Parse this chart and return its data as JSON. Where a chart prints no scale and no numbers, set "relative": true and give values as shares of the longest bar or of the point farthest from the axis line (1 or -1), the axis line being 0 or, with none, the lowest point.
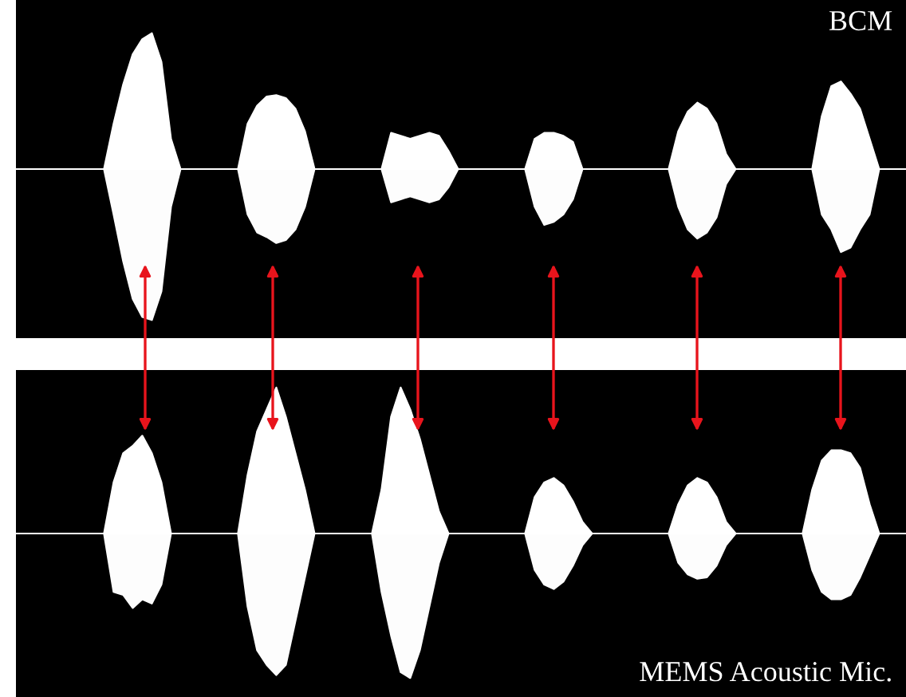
{
  "chart_data": [
    {
      "type": "area",
      "relative": true,
      "annotations": [
        "BCM"
      ],
      "categories": [
        null,
        null,
        null,
        null,
        null,
        null,
        null,
        null,
        null,
        null,
        null,
        null,
        null,
        null,
        null,
        null,
        null,
        null,
        null,
        null,
        null,
        null,
        null,
        null,
        null,
        null,
        null,
        null,
        null,
        null,
        null,
        null,
        null,
        null,
        null,
        null,
        null,
        null,
        null,
        null,
        null,
        null,
        null,
        null,
        null,
        null,
        null,
        null,
        null,
        null,
        null,
        null,
        null,
        null,
        null,
        null,
        null,
        null,
        null,
        null,
        null,
        null,
        null,
        null,
        null,
        null,
        null,
        null,
        null,
        null,
        null,
        null,
        null,
        null,
        null,
        null,
        null,
        null,
        null,
        null,
        null,
        null,
        null,
        null,
        null,
        null,
        null,
        null,
        null,
        null,
        null,
        null,
        null
      ],
      "series": [
        {
          "color": "#ffffff",
          "values": [
            0,
            0,
            0,
            0,
            0,
            0,
            0,
            0,
            0,
            0,
            0.3,
            0.56,
            0.76,
            0.86,
            0.9,
            0.71,
            0.2,
            0,
            0,
            0,
            0,
            0,
            0,
            0,
            0.3,
            0.42,
            0.48,
            0.49,
            0.47,
            0.4,
            0.25,
            0,
            0,
            0,
            0,
            0,
            0,
            0,
            0,
            0.24,
            0.22,
            0.2,
            0.22,
            0.24,
            0.22,
            0.12,
            0,
            0,
            0,
            0,
            0,
            0,
            0,
            0,
            0.2,
            0.24,
            0.24,
            0.22,
            0.18,
            0,
            0,
            0,
            0,
            0,
            0,
            0,
            0,
            0,
            0,
            0.25,
            0.38,
            0.44,
            0.4,
            0.3,
            0.1,
            0,
            0,
            0,
            0,
            0,
            0,
            0,
            0,
            0,
            0.35,
            0.55,
            0.58,
            0.5,
            0.4,
            0.2,
            0,
            0,
            0
          ]
        },
        {
          "color": "#fdfdfd",
          "values": [
            0,
            0,
            0,
            0,
            0,
            0,
            0,
            0,
            0,
            0,
            -0.3,
            -0.61,
            -0.86,
            -0.98,
            -1,
            -0.81,
            -0.25,
            0,
            0,
            0,
            0,
            0,
            0,
            0,
            -0.3,
            -0.42,
            -0.45,
            -0.49,
            -0.47,
            -0.4,
            -0.25,
            0,
            0,
            0,
            0,
            0,
            0,
            0,
            0,
            -0.22,
            -0.2,
            -0.18,
            -0.2,
            -0.22,
            -0.2,
            -0.12,
            0,
            0,
            0,
            0,
            0,
            0,
            0,
            0,
            -0.25,
            -0.37,
            -0.35,
            -0.3,
            -0.2,
            0,
            0,
            0,
            0,
            0,
            0,
            0,
            0,
            0,
            0,
            -0.25,
            -0.4,
            -0.46,
            -0.42,
            -0.32,
            -0.1,
            0,
            0,
            0,
            0,
            0,
            0,
            0,
            0,
            0,
            -0.3,
            -0.4,
            -0.55,
            -0.52,
            -0.4,
            -0.3,
            0,
            0,
            0
          ]
        }
      ]
    },
    {
      "type": "area",
      "relative": true,
      "annotations": [
        "MEMS Acoustic Mic."
      ],
      "categories": [
        null,
        null,
        null,
        null,
        null,
        null,
        null,
        null,
        null,
        null,
        null,
        null,
        null,
        null,
        null,
        null,
        null,
        null,
        null,
        null,
        null,
        null,
        null,
        null,
        null,
        null,
        null,
        null,
        null,
        null,
        null,
        null,
        null,
        null,
        null,
        null,
        null,
        null,
        null,
        null,
        null,
        null,
        null,
        null,
        null,
        null,
        null,
        null,
        null,
        null,
        null,
        null,
        null,
        null,
        null,
        null,
        null,
        null,
        null,
        null,
        null,
        null,
        null,
        null,
        null,
        null,
        null,
        null,
        null,
        null,
        null,
        null,
        null,
        null,
        null,
        null,
        null,
        null,
        null,
        null,
        null,
        null,
        null,
        null,
        null,
        null,
        null,
        null,
        null,
        null,
        null,
        null,
        null
      ],
      "series": [
        {
          "color": "#ffffff",
          "values": [
            0,
            0,
            0,
            0,
            0,
            0,
            0,
            0,
            0,
            0,
            0.35,
            0.55,
            0.6,
            0.67,
            0.55,
            0.35,
            0,
            0,
            0,
            0,
            0,
            0,
            0,
            0,
            0.4,
            0.7,
            0.85,
            1,
            0.8,
            0.55,
            0.3,
            0,
            0,
            0,
            0,
            0,
            0,
            0,
            0.3,
            0.8,
            1,
            0.85,
            0.65,
            0.4,
            0.15,
            0,
            0,
            0,
            0,
            0,
            0,
            0,
            0,
            0,
            0.25,
            0.35,
            0.38,
            0.33,
            0.22,
            0.08,
            0,
            0,
            0,
            0,
            0,
            0,
            0,
            0,
            0,
            0.2,
            0.33,
            0.38,
            0.35,
            0.25,
            0.08,
            0,
            0,
            0,
            0,
            0,
            0,
            0,
            0,
            0.3,
            0.5,
            0.57,
            0.57,
            0.55,
            0.45,
            0.2,
            0,
            0,
            0
          ]
        },
        {
          "color": "#fdfdfd",
          "values": [
            0,
            0,
            0,
            0,
            0,
            0,
            0,
            0,
            0,
            0,
            -0.4,
            -0.42,
            -0.51,
            -0.45,
            -0.48,
            -0.35,
            0,
            0,
            0,
            0,
            0,
            0,
            0,
            0,
            -0.5,
            -0.8,
            -0.9,
            -0.97,
            -0.9,
            -0.6,
            -0.3,
            0,
            0,
            0,
            0,
            0,
            0,
            0,
            -0.4,
            -0.7,
            -0.95,
            -0.99,
            -0.8,
            -0.5,
            -0.2,
            0,
            0,
            0,
            0,
            0,
            0,
            0,
            0,
            0,
            -0.25,
            -0.35,
            -0.38,
            -0.33,
            -0.22,
            -0.08,
            0,
            0,
            0,
            0,
            0,
            0,
            0,
            0,
            0,
            -0.2,
            -0.28,
            -0.31,
            -0.3,
            -0.22,
            -0.08,
            0,
            0,
            0,
            0,
            0,
            0,
            0,
            0,
            -0.25,
            -0.4,
            -0.45,
            -0.45,
            -0.42,
            -0.3,
            -0.15,
            0,
            0,
            0
          ]
        }
      ]
    }
  ]
}
